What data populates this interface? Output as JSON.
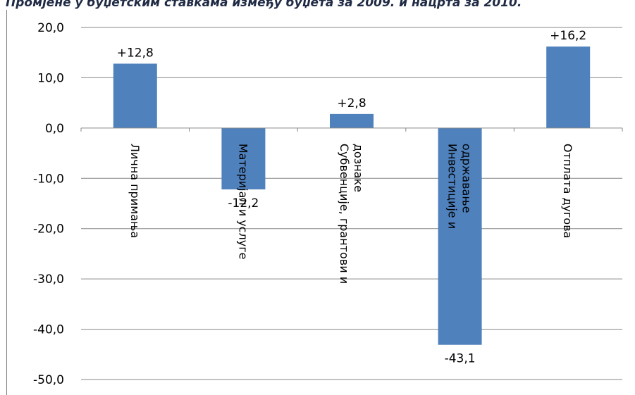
{
  "chart_data": {
    "type": "bar",
    "title": "Промјене у буџетским ставкама између буџета за 2009. и нацрта за 2010.",
    "categories": [
      "Лична примања",
      "Материјал и услуге",
      "Субвенције, грантови и дознаке",
      "Инвестиције и одржавање",
      "Отплата дугова"
    ],
    "category_lines": [
      [
        "Лична примања"
      ],
      [
        "Материјал и услуге"
      ],
      [
        "Субвенције, грантови и",
        "дознаке"
      ],
      [
        "Инвестиције и",
        "одржавање"
      ],
      [
        "Отплата дугова"
      ]
    ],
    "values": [
      12.8,
      -12.2,
      2.8,
      -43.1,
      16.2
    ],
    "data_labels": [
      "+12,8",
      "-12,2",
      "+2,8",
      "-43,1",
      "+16,2"
    ],
    "y_ticks": [
      "20,0",
      "10,0",
      "0,0",
      "-10,0",
      "-20,0",
      "-30,0",
      "-40,0",
      "-50,0"
    ],
    "ylim": [
      -50,
      20
    ],
    "grid": true,
    "bar_color": "#4f81bd",
    "gridline_color": "#878787",
    "xlabel": "",
    "ylabel": ""
  }
}
